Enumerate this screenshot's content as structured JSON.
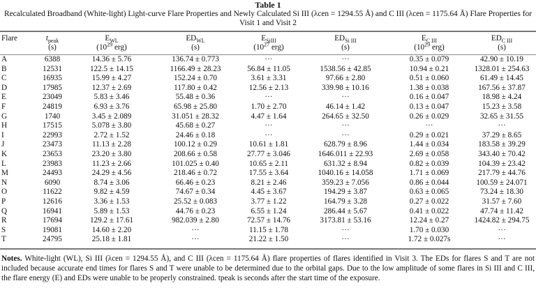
{
  "caption": {
    "table_number": "Table 1",
    "title_line1": "Recalculated Broadband (White-light) Light-curve Flare Properties and Newly Calculated Si III (λcen = 1294.55 Å) and C III (λcen = 1175.64 Å) Flare Properties for",
    "title_line2": "Visit 1 and Visit 2"
  },
  "columns": [
    {
      "key": "flare",
      "label": "Flare",
      "sub": "",
      "sup": "",
      "unit": ""
    },
    {
      "key": "tpeak",
      "label": "t",
      "sub": "peak",
      "unit": "(s)"
    },
    {
      "key": "e_wl",
      "label": "E",
      "sub": "WL",
      "unit_prefix": "(10",
      "unit_sup": "29",
      "unit_suffix": " erg)"
    },
    {
      "key": "ed_wl",
      "label": "ED",
      "sub": "WL",
      "unit": "(s)"
    },
    {
      "key": "e_si",
      "label": "E",
      "sub": "SiIII",
      "unit_prefix": "(10",
      "unit_sup": "27",
      "unit_suffix": " erg)"
    },
    {
      "key": "ed_si",
      "label": "ED",
      "sub": "Si III",
      "unit": "(s)"
    },
    {
      "key": "e_c",
      "label": "E",
      "sub": "C III",
      "unit_prefix": "(10",
      "unit_sup": "29",
      "unit_suffix": " erg)"
    },
    {
      "key": "ed_c",
      "label": "ED",
      "sub": "C III",
      "unit": "(s)"
    }
  ],
  "rows": [
    {
      "flare": "A",
      "tpeak": "6388",
      "e_wl": "14.36 ± 5.76",
      "ed_wl": "136.74 ± 0.773",
      "e_si": "···",
      "ed_si": "···",
      "e_c": "0.35 ± 0.079",
      "ed_c": "42.90 ± 10.19"
    },
    {
      "flare": "B",
      "tpeak": "12531",
      "e_wl": "122.5 ± 14.15",
      "ed_wl": "1166.49 ± 28.23",
      "e_si": "56.84 ± 11.05",
      "ed_si": "1538.56 ± 42.85",
      "e_c": "10.94 ± 0.21",
      "ed_c": "1328.01 ± 254.63"
    },
    {
      "flare": "C",
      "tpeak": "16935",
      "e_wl": "15.99 ± 4.27",
      "ed_wl": "152.24 ± 0.70",
      "e_si": "3.61 ± 3.31",
      "ed_si": "97.66 ± 2.80",
      "e_c": "0.51 ± 0.060",
      "ed_c": "61.49 ± 14.45"
    },
    {
      "flare": "D",
      "tpeak": "17985",
      "e_wl": "12.37 ± 2.69",
      "ed_wl": "117.80 ± 0.42",
      "e_si": "12.56 ± 2.13",
      "ed_si": "339.98 ± 10.16",
      "e_c": "1.38 ± 0.038",
      "ed_c": "167.56 ± 37.87"
    },
    {
      "flare": "E",
      "tpeak": "23049",
      "e_wl": "5.83 ± 3.46",
      "ed_wl": "55.48 ± 0.36",
      "e_si": "···",
      "ed_si": "···",
      "e_c": "0.16 ± 0.047",
      "ed_c": "18.98 ± 4.24"
    },
    {
      "flare": "F",
      "tpeak": "24819",
      "e_wl": "6.93 ± 3.76",
      "ed_wl": "65.98 ± 25.80",
      "e_si": "1.70 ± 2.70",
      "ed_si": "46.14 ± 1.42",
      "e_c": "0.13 ± 0.047",
      "ed_c": "15.23 ± 3.58"
    },
    {
      "flare": "G",
      "tpeak": "1740",
      "e_wl": "3.45 ± 2.089",
      "ed_wl": "31.051 ± 28.32",
      "e_si": "4.47 ± 1.64",
      "ed_si": "264.65 ± 32.50",
      "e_c": "0.26 ± 0.029",
      "ed_c": "32.65 ± 31.55"
    },
    {
      "flare": "H",
      "tpeak": "17515",
      "e_wl": "5.078 ± 3.80",
      "ed_wl": "45.68 ± 0.27",
      "e_si": "···",
      "ed_si": "···",
      "e_c": "···",
      "ed_c": "···"
    },
    {
      "flare": "I",
      "tpeak": "22993",
      "e_wl": "2.72 ± 1.52",
      "ed_wl": "24.46 ± 0.18",
      "e_si": "···",
      "ed_si": "···",
      "e_c": "0.29 ± 0.021",
      "ed_c": "37.29 ± 8.65"
    },
    {
      "flare": "J",
      "tpeak": "23473",
      "e_wl": "11.13 ± 2.28",
      "ed_wl": "100.12 ± 0.29",
      "e_si": "10.61 ± 1.81",
      "ed_si": "628.79 ± 8.96",
      "e_c": "1.44 ± 0.034",
      "ed_c": "183.58 ± 39.29"
    },
    {
      "flare": "K",
      "tpeak": "23653",
      "e_wl": "23.20 ± 3.80",
      "ed_wl": "208.66 ± 0.58",
      "e_si": "27.77 ± 3.046",
      "ed_si": "1646.011 ± 22.93",
      "e_c": "2.69 ± 0.058",
      "ed_c": "343.40 ± 70.42"
    },
    {
      "flare": "L",
      "tpeak": "23983",
      "e_wl": "11.23 ± 2.66",
      "ed_wl": "101.025 ± 0.40",
      "e_si": "10.65 ± 2.11",
      "ed_si": "631.32 ± 8.94",
      "e_c": "0.82 ± 0.039",
      "ed_c": "104.39 ± 23.42"
    },
    {
      "flare": "M",
      "tpeak": "24493",
      "e_wl": "24.29 ± 4.56",
      "ed_wl": "218.46 ± 0.72",
      "e_si": "17.55 ± 3.64",
      "ed_si": "1040.16 ± 14.058",
      "e_c": "1.71 ± 0.069",
      "ed_c": "217.79 ± 44.76"
    },
    {
      "flare": "N",
      "tpeak": "6090",
      "e_wl": "8.74 ± 3.06",
      "ed_wl": "66.46 ± 0.23",
      "e_si": "8.21 ± 2.46",
      "ed_si": "359.23 ± 7.056",
      "e_c": "0.86 ± 0.044",
      "ed_c": "100.59 ± 24.071"
    },
    {
      "flare": "O",
      "tpeak": "11622",
      "e_wl": "9.82 ± 4.59",
      "ed_wl": "74.67 ± 0.34",
      "e_si": "4.45 ± 3.67",
      "ed_si": "194.29 ± 3.87",
      "e_c": "0.63 ± 0.065",
      "ed_c": "73.24 ± 18.30"
    },
    {
      "flare": "P",
      "tpeak": "12616",
      "e_wl": "3.36 ± 1.53",
      "ed_wl": "25.52 ± 0.083",
      "e_si": "3.77 ± 1.22",
      "ed_si": "164.79 ± 3.28",
      "e_c": "0.27 ± 0.022",
      "ed_c": "31.57 ± 7.60"
    },
    {
      "flare": "Q",
      "tpeak": "16941",
      "e_wl": "5.89 ± 1.53",
      "ed_wl": "44.76 ± 0.23",
      "e_si": "6.55 ± 1.24",
      "ed_si": "286.44 ± 5.67",
      "e_c": "0.41 ± 0.022",
      "ed_c": "47.74 ± 11.42"
    },
    {
      "flare": "R",
      "tpeak": "17694",
      "e_wl": "129.2 ± 17.61",
      "ed_wl": "982.039 ± 2.80",
      "e_si": "72.57 ± 14.76",
      "ed_si": "3173.81 ± 53.16",
      "e_c": "12.24 ± 0.27",
      "ed_c": "1424.82 ± 294.75"
    },
    {
      "flare": "S",
      "tpeak": "19081",
      "e_wl": "14.60 ± 2.20",
      "ed_wl": "···",
      "e_si": "11.15 ± 1.78",
      "ed_si": "···",
      "e_c": "1.70 ± 0.030",
      "ed_c": "···"
    },
    {
      "flare": "T",
      "tpeak": "24795",
      "e_wl": "25.18 ± 1.81",
      "ed_wl": "···",
      "e_si": "21.22 ± 1.50",
      "ed_si": "···",
      "e_c": "1.72 ± 0.027s",
      "ed_c": "···"
    }
  ],
  "notes": {
    "label": "Notes.",
    "text": "White-light (WL), Si III (λcen = 1294.55 Å), and C III (λcen = 1175.64 Å) flare properties of flares identified in Visit 3. The EDs for flares S and T are not included because accurate end times for flares S and T were unable to be determined due to the orbital gaps. Due to the low amplitude of some flares in Si III and C III, the flare energy (E) and EDs were unable to be properly constrained. tpeak is seconds after the start time of the exposure."
  }
}
